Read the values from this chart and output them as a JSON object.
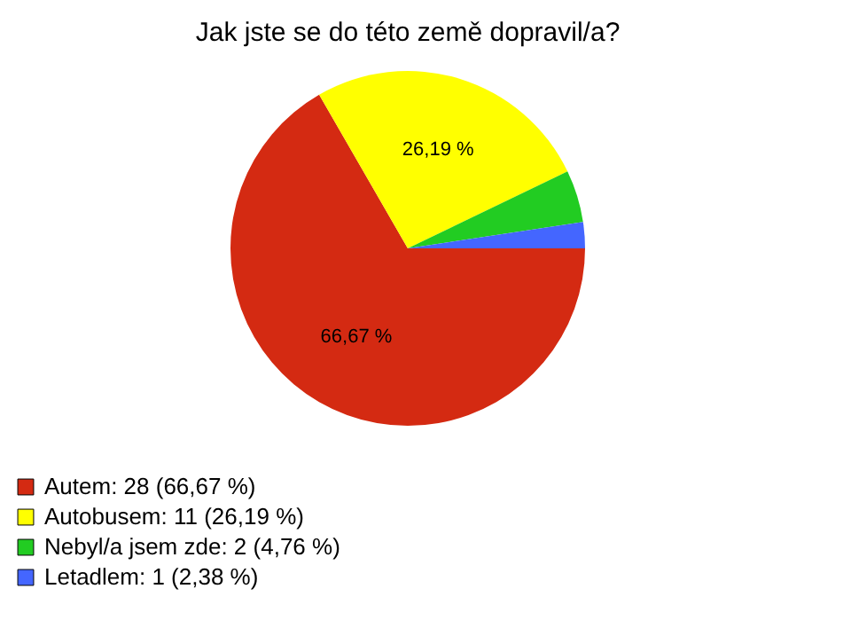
{
  "chart_data": {
    "type": "pie",
    "title": "Jak jste se do této země dopravil/a?",
    "categories": [
      "Autem: 28 (66,67 %)",
      "Autobusem: 11 (26,19 %)",
      "Nebyl/a jsem zde: 2 (4,76 %)",
      "Letadlem: 1 (2,38 %)"
    ],
    "values": [
      66.67,
      26.19,
      4.76,
      2.38
    ],
    "colors": [
      "#d42a12",
      "#ffff00",
      "#22cc22",
      "#4466ff"
    ],
    "value_labels": [
      "66,67 %",
      "26,19 %",
      null,
      null
    ],
    "legend": "bottom left"
  }
}
